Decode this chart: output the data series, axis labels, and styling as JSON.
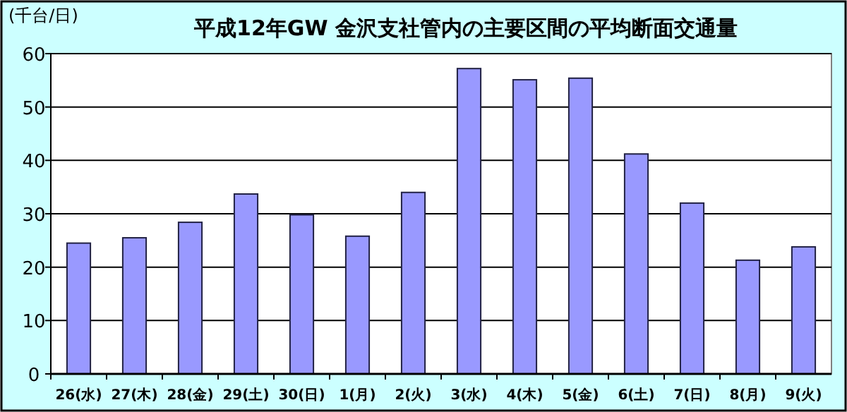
{
  "chart_data": {
    "type": "bar",
    "title": "平成12年GW 金沢支社管内の主要区間の平均断面交通量",
    "ylabel": "(千台/日)",
    "categories": [
      "26(水)",
      "27(木)",
      "28(金)",
      "29(土)",
      "30(日)",
      "1(月)",
      "2(火)",
      "3(水)",
      "4(木)",
      "5(金)",
      "6(土)",
      "7(日)",
      "8(月)",
      "9(火)"
    ],
    "values": [
      24.5,
      25.5,
      28.4,
      33.7,
      29.8,
      25.8,
      34.0,
      57.2,
      55.1,
      55.4,
      41.2,
      32.0,
      21.3,
      23.8
    ],
    "color": "#9999ff",
    "ylim": [
      0,
      60
    ],
    "yticks": [
      0,
      10,
      20,
      30,
      40,
      50,
      60
    ],
    "grid": "y"
  }
}
